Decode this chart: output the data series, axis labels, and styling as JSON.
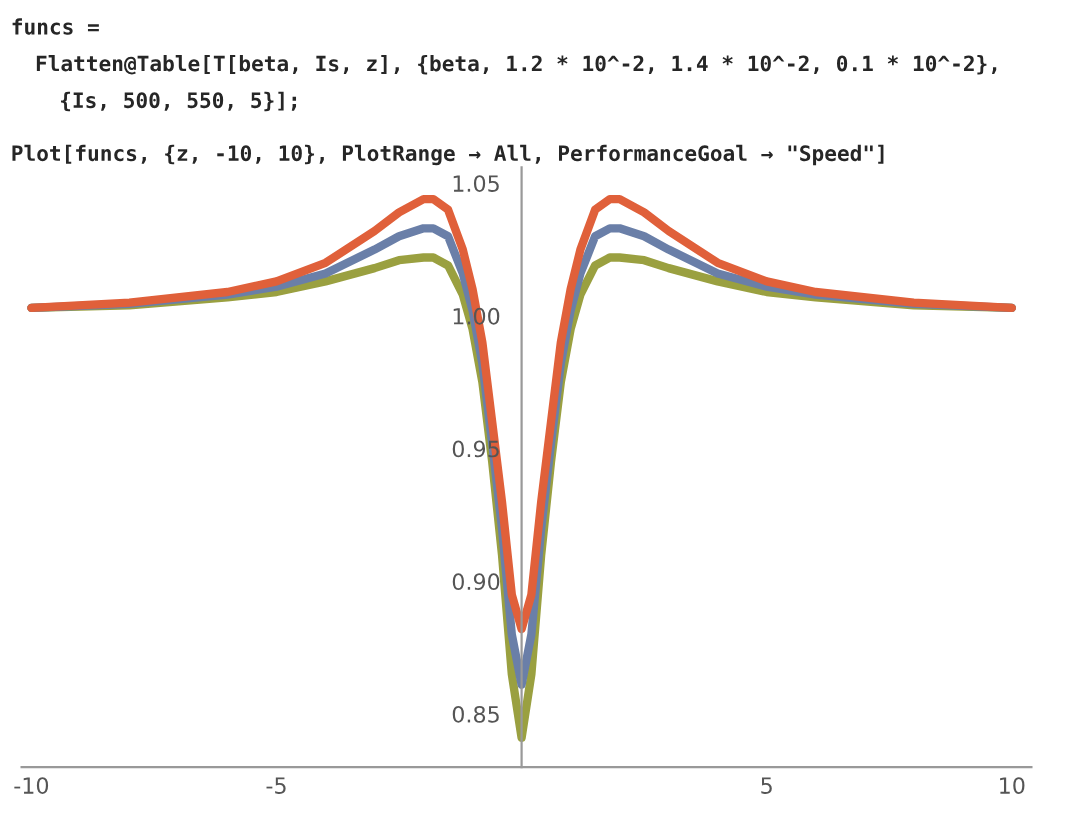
{
  "chart_data": {
    "type": "line",
    "annotations": [
      "funcs =",
      "Flatten@Table[T[beta, Is, z], {beta, 1.2 * 10^-2, 1.4 * 10^-2, 0.1 * 10^-2},",
      "{Is, 500, 550, 5}];",
      "Plot[funcs, {z, -10, 10}, PlotRange → All, PerformanceGoal → \"Speed\"]"
    ],
    "x": [
      -10,
      -8,
      -6,
      -5,
      -4,
      -3,
      -2.5,
      -2,
      -1.8,
      -1.5,
      -1.2,
      -1,
      -0.8,
      -0.6,
      -0.4,
      -0.2,
      0,
      0.2,
      0.4,
      0.6,
      0.8,
      1,
      1.2,
      1.5,
      1.8,
      2,
      2.5,
      3,
      4,
      5,
      6,
      8,
      10
    ],
    "series": [
      {
        "color": "#9aa040",
        "values": [
          1.003,
          1.004,
          1.007,
          1.009,
          1.013,
          1.018,
          1.021,
          1.022,
          1.022,
          1.019,
          1.008,
          0.995,
          0.975,
          0.945,
          0.91,
          0.865,
          0.841,
          0.865,
          0.91,
          0.945,
          0.975,
          0.995,
          1.008,
          1.019,
          1.022,
          1.022,
          1.021,
          1.018,
          1.013,
          1.009,
          1.007,
          1.004,
          1.003
        ]
      },
      {
        "color": "#6a7fa8",
        "values": [
          1.003,
          1.0045,
          1.008,
          1.011,
          1.016,
          1.025,
          1.03,
          1.033,
          1.033,
          1.03,
          1.016,
          1.002,
          0.982,
          0.952,
          0.92,
          0.88,
          0.861,
          0.88,
          0.92,
          0.952,
          0.982,
          1.002,
          1.016,
          1.03,
          1.033,
          1.033,
          1.03,
          1.025,
          1.016,
          1.011,
          1.008,
          1.0045,
          1.003
        ]
      },
      {
        "color": "#e0603a",
        "values": [
          1.003,
          1.005,
          1.009,
          1.013,
          1.02,
          1.032,
          1.039,
          1.044,
          1.044,
          1.04,
          1.025,
          1.01,
          0.99,
          0.96,
          0.93,
          0.895,
          0.882,
          0.895,
          0.93,
          0.96,
          0.99,
          1.01,
          1.025,
          1.04,
          1.044,
          1.044,
          1.039,
          1.032,
          1.02,
          1.013,
          1.009,
          1.005,
          1.003
        ]
      }
    ],
    "xlim": [
      -10.2,
      10.4
    ],
    "ylim": [
      0.83,
      1.056
    ],
    "xticks": [
      -10,
      -5,
      5,
      10
    ],
    "yticks": [
      0.85,
      {
        "value": 0.9,
        "label": "0.90"
      },
      0.95,
      {
        "value": 1.0,
        "label": "1.00"
      },
      1.05
    ],
    "grid": false,
    "legend": false,
    "marker": "none",
    "line_style": "solid"
  }
}
